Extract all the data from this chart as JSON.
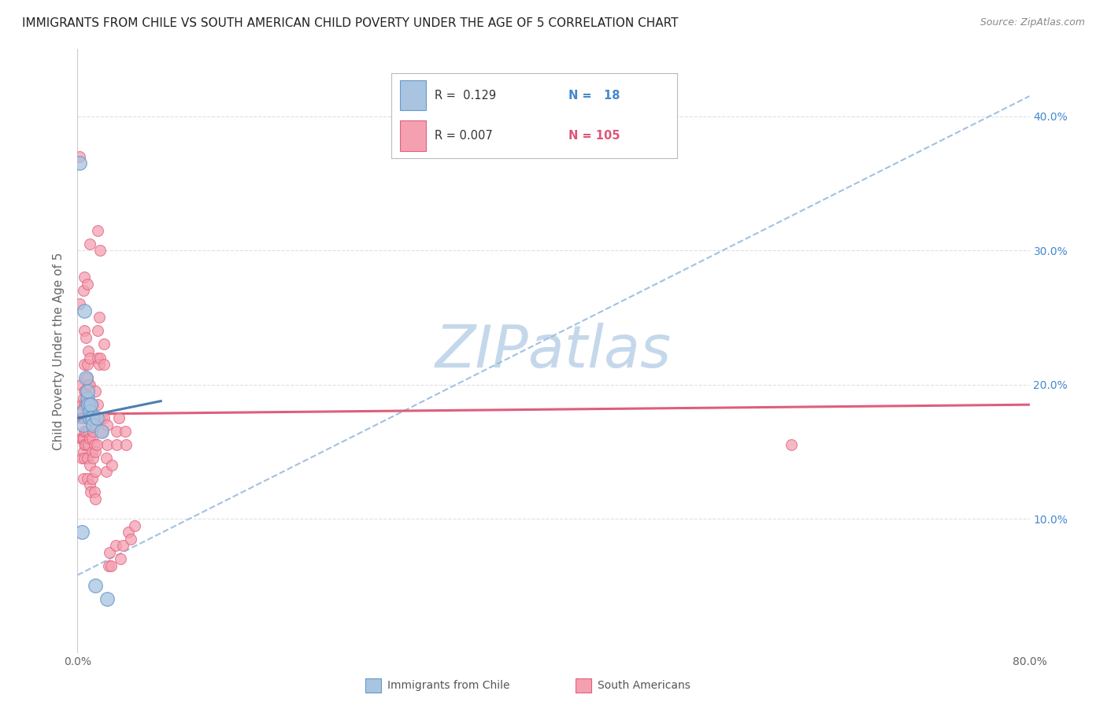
{
  "title": "IMMIGRANTS FROM CHILE VS SOUTH AMERICAN CHILD POVERTY UNDER THE AGE OF 5 CORRELATION CHART",
  "source": "Source: ZipAtlas.com",
  "ylabel": "Child Poverty Under the Age of 5",
  "xlim": [
    0,
    80
  ],
  "ylim": [
    0,
    45
  ],
  "xtick_positions": [
    0,
    10,
    20,
    30,
    40,
    50,
    60,
    70,
    80
  ],
  "xtick_labels": [
    "0.0%",
    "",
    "",
    "",
    "",
    "",
    "",
    "",
    "80.0%"
  ],
  "ytick_positions": [
    0,
    10,
    20,
    30,
    40
  ],
  "ytick_labels_right": [
    "",
    "10.0%",
    "20.0%",
    "30.0%",
    "40.0%"
  ],
  "blue_color": "#a8c4e0",
  "pink_color": "#f4a0b0",
  "blue_edge_color": "#6699cc",
  "pink_edge_color": "#e06080",
  "blue_line_color": "#4477aa",
  "pink_line_color": "#dd5577",
  "dashed_line_color": "#99bbdd",
  "watermark_color": "#c5d8eb",
  "grid_color": "#dddddd",
  "title_color": "#222222",
  "right_axis_color": "#4488cc",
  "legend_n1_color": "#4488cc",
  "legend_n2_color": "#dd5577",
  "blue_points": [
    [
      0.2,
      36.5
    ],
    [
      0.4,
      9.0
    ],
    [
      0.5,
      18.0
    ],
    [
      0.5,
      17.0
    ],
    [
      0.6,
      25.5
    ],
    [
      0.7,
      20.5
    ],
    [
      0.8,
      19.0
    ],
    [
      0.8,
      19.5
    ],
    [
      0.9,
      18.5
    ],
    [
      1.0,
      18.0
    ],
    [
      1.0,
      17.5
    ],
    [
      1.1,
      18.5
    ],
    [
      1.2,
      17.5
    ],
    [
      1.3,
      17.0
    ],
    [
      1.5,
      5.0
    ],
    [
      1.6,
      17.5
    ],
    [
      2.0,
      16.5
    ],
    [
      2.5,
      4.0
    ]
  ],
  "pink_points": [
    [
      0.2,
      37.0
    ],
    [
      0.2,
      26.0
    ],
    [
      0.3,
      17.5
    ],
    [
      0.3,
      20.0
    ],
    [
      0.3,
      16.0
    ],
    [
      0.3,
      18.0
    ],
    [
      0.4,
      18.5
    ],
    [
      0.4,
      17.5
    ],
    [
      0.4,
      16.0
    ],
    [
      0.4,
      14.5
    ],
    [
      0.5,
      27.0
    ],
    [
      0.5,
      19.0
    ],
    [
      0.5,
      17.5
    ],
    [
      0.5,
      16.0
    ],
    [
      0.5,
      15.0
    ],
    [
      0.5,
      13.0
    ],
    [
      0.6,
      28.0
    ],
    [
      0.6,
      24.0
    ],
    [
      0.6,
      21.5
    ],
    [
      0.6,
      19.5
    ],
    [
      0.6,
      18.5
    ],
    [
      0.6,
      17.5
    ],
    [
      0.6,
      16.5
    ],
    [
      0.6,
      15.5
    ],
    [
      0.6,
      14.5
    ],
    [
      0.7,
      23.5
    ],
    [
      0.7,
      20.5
    ],
    [
      0.7,
      19.5
    ],
    [
      0.7,
      18.5
    ],
    [
      0.7,
      17.5
    ],
    [
      0.7,
      16.5
    ],
    [
      0.7,
      15.5
    ],
    [
      0.8,
      27.5
    ],
    [
      0.8,
      21.5
    ],
    [
      0.8,
      20.5
    ],
    [
      0.8,
      19.0
    ],
    [
      0.8,
      18.0
    ],
    [
      0.8,
      14.5
    ],
    [
      0.8,
      13.0
    ],
    [
      0.9,
      22.5
    ],
    [
      0.9,
      20.0
    ],
    [
      0.9,
      19.0
    ],
    [
      0.9,
      17.5
    ],
    [
      0.9,
      16.5
    ],
    [
      0.9,
      15.5
    ],
    [
      1.0,
      30.5
    ],
    [
      1.0,
      22.0
    ],
    [
      1.0,
      20.0
    ],
    [
      1.0,
      18.5
    ],
    [
      1.0,
      17.5
    ],
    [
      1.0,
      16.0
    ],
    [
      1.0,
      14.0
    ],
    [
      1.0,
      12.5
    ],
    [
      1.1,
      12.0
    ],
    [
      1.2,
      17.5
    ],
    [
      1.2,
      16.0
    ],
    [
      1.2,
      15.0
    ],
    [
      1.2,
      13.0
    ],
    [
      1.3,
      18.5
    ],
    [
      1.3,
      16.5
    ],
    [
      1.3,
      14.5
    ],
    [
      1.4,
      17.0
    ],
    [
      1.4,
      15.5
    ],
    [
      1.4,
      12.0
    ],
    [
      1.5,
      19.5
    ],
    [
      1.5,
      17.0
    ],
    [
      1.5,
      15.0
    ],
    [
      1.5,
      13.5
    ],
    [
      1.5,
      11.5
    ],
    [
      1.6,
      17.5
    ],
    [
      1.6,
      15.5
    ],
    [
      1.7,
      31.5
    ],
    [
      1.7,
      24.0
    ],
    [
      1.7,
      22.0
    ],
    [
      1.7,
      18.5
    ],
    [
      1.7,
      17.5
    ],
    [
      1.8,
      25.0
    ],
    [
      1.8,
      21.5
    ],
    [
      1.9,
      30.0
    ],
    [
      1.9,
      22.0
    ],
    [
      2.0,
      17.5
    ],
    [
      2.1,
      16.5
    ],
    [
      2.2,
      23.0
    ],
    [
      2.2,
      21.5
    ],
    [
      2.2,
      17.5
    ],
    [
      2.4,
      14.5
    ],
    [
      2.4,
      13.5
    ],
    [
      2.5,
      17.0
    ],
    [
      2.5,
      15.5
    ],
    [
      2.6,
      6.5
    ],
    [
      2.7,
      7.5
    ],
    [
      2.8,
      6.5
    ],
    [
      2.9,
      14.0
    ],
    [
      3.2,
      8.0
    ],
    [
      3.3,
      16.5
    ],
    [
      3.3,
      15.5
    ],
    [
      3.5,
      17.5
    ],
    [
      3.6,
      7.0
    ],
    [
      3.8,
      8.0
    ],
    [
      4.0,
      16.5
    ],
    [
      4.1,
      15.5
    ],
    [
      4.3,
      9.0
    ],
    [
      4.5,
      8.5
    ],
    [
      4.8,
      9.5
    ],
    [
      60.0,
      15.5
    ]
  ],
  "blue_trend": [
    0,
    17.5,
    80,
    32.0
  ],
  "pink_trend": [
    0,
    17.8,
    80,
    18.5
  ],
  "dashed_trend": [
    0,
    5.8,
    80,
    41.5
  ]
}
